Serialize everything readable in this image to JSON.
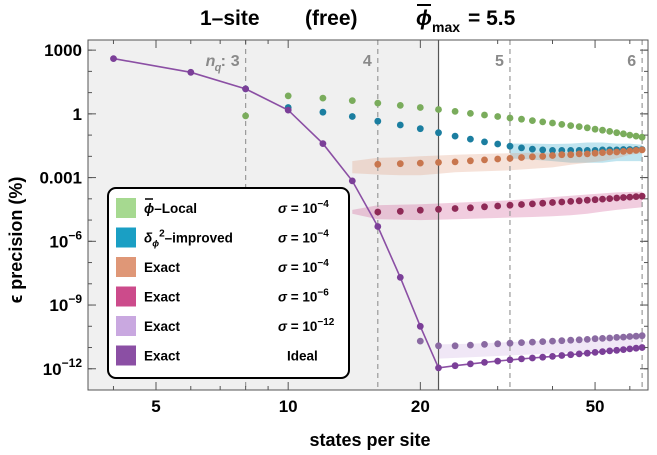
{
  "chart_data": {
    "type": "scatter",
    "title_parts": {
      "site": "1–site",
      "mode": "(free)",
      "phi": "ϕ",
      "sub": "max",
      "value": "= 5.5"
    },
    "xlabel": "states per site",
    "ylabel": "ϵ precision (%)",
    "x_scale": "log",
    "y_scale": "log",
    "xlim": [
      3.5,
      66
    ],
    "ylim": [
      1e-13,
      3000
    ],
    "x_ticks": [
      {
        "value": 5,
        "label": "5"
      },
      {
        "value": 10,
        "label": "10"
      },
      {
        "value": 20,
        "label": "20"
      },
      {
        "value": 50,
        "label": "50"
      }
    ],
    "y_ticks": [
      {
        "value": 1000,
        "label": "1000"
      },
      {
        "value": 1,
        "label": "1"
      },
      {
        "value": 0.001,
        "label": "0.001"
      },
      {
        "value": 1e-06,
        "label": "10",
        "exp": "−6"
      },
      {
        "value": 1e-09,
        "label": "10",
        "exp": "−9"
      },
      {
        "value": 1e-12,
        "label": "10",
        "exp": "−12"
      }
    ],
    "shaded_region": {
      "x_max": 22,
      "color": "#f0f0f0"
    },
    "solid_line_x": 22,
    "nq_prefix": "n",
    "nq_sub": "q",
    "nq_markers": [
      {
        "x": 8,
        "label": "3"
      },
      {
        "x": 16,
        "label": "4"
      },
      {
        "x": 32,
        "label": "5"
      },
      {
        "x": 64,
        "label": "6"
      }
    ],
    "series": [
      {
        "name": "ϕ‾–Local",
        "display": "ϕ–Local",
        "sigma": "σ = 10",
        "sigma_exp": "−4",
        "color": "#7aac5c",
        "legend_color": "#a6d990",
        "x": [
          8,
          10,
          12,
          14,
          16,
          18,
          20,
          22,
          24,
          26,
          28,
          30,
          32,
          34,
          36,
          38,
          40,
          42,
          44,
          46,
          48,
          50,
          52,
          54,
          56,
          58,
          60,
          62,
          64
        ],
        "y": [
          0.8,
          7,
          5.5,
          4.2,
          3.2,
          2.5,
          2.0,
          1.6,
          1.3,
          1.05,
          0.88,
          0.75,
          0.64,
          0.56,
          0.48,
          0.42,
          0.37,
          0.32,
          0.28,
          0.25,
          0.22,
          0.19,
          0.17,
          0.15,
          0.13,
          0.115,
          0.1,
          0.09,
          0.08
        ]
      },
      {
        "name": "δϕ²–improved",
        "display": "δ",
        "sigma": "σ = 10",
        "sigma_exp": "−4",
        "color": "#1b7ea0",
        "legend_color": "#1a9fc4",
        "x": [
          8,
          10,
          12,
          14,
          16,
          18,
          20,
          22,
          24,
          26,
          28,
          30,
          32,
          34,
          36,
          38,
          40,
          42,
          44,
          46,
          48,
          50,
          52,
          54,
          56,
          58,
          60,
          62,
          64
        ],
        "y": [
          15,
          2.0,
          1.2,
          0.75,
          0.45,
          0.3,
          0.2,
          0.13,
          0.09,
          0.065,
          0.048,
          0.038,
          0.03,
          0.025,
          0.022,
          0.02,
          0.019,
          0.019,
          0.019,
          0.019,
          0.019,
          0.019,
          0.02,
          0.02,
          0.02,
          0.021,
          0.021,
          0.021,
          0.021
        ],
        "band": {
          "x": [
            32,
            36,
            40,
            44,
            48,
            52,
            56,
            60,
            64
          ],
          "lo": [
            0.008,
            0.007,
            0.006,
            0.005,
            0.005,
            0.005,
            0.006,
            0.006,
            0.006
          ],
          "hi": [
            0.04,
            0.04,
            0.038,
            0.04,
            0.045,
            0.045,
            0.04,
            0.04,
            0.035
          ]
        }
      },
      {
        "name": "Exact σ=1e-4",
        "display": "Exact",
        "sigma": "σ = 10",
        "sigma_exp": "−4",
        "color": "#c8764e",
        "legend_color": "#df9777",
        "x": [
          16,
          18,
          20,
          22,
          24,
          26,
          28,
          30,
          32,
          34,
          36,
          38,
          40,
          42,
          44,
          46,
          48,
          50,
          52,
          54,
          56,
          58,
          60,
          62,
          64
        ],
        "y": [
          0.0042,
          0.0045,
          0.0048,
          0.0052,
          0.0055,
          0.0062,
          0.0068,
          0.0075,
          0.008,
          0.0088,
          0.0095,
          0.01,
          0.011,
          0.012,
          0.012,
          0.013,
          0.013,
          0.014,
          0.015,
          0.016,
          0.016,
          0.017,
          0.018,
          0.019,
          0.02
        ],
        "band": {
          "x": [
            14,
            16,
            18,
            20,
            22,
            24,
            28,
            32,
            36,
            40,
            44,
            48,
            52,
            56,
            60,
            64
          ],
          "lo": [
            0.0016,
            0.0014,
            0.0013,
            0.0013,
            0.0015,
            0.0018,
            0.002,
            0.0022,
            0.0026,
            0.003,
            0.004,
            0.005,
            0.006,
            0.008,
            0.012,
            0.014
          ],
          "hi": [
            0.006,
            0.0085,
            0.009,
            0.01,
            0.011,
            0.012,
            0.013,
            0.014,
            0.015,
            0.015,
            0.016,
            0.017,
            0.02,
            0.022,
            0.026,
            0.03
          ]
        }
      },
      {
        "name": "Exact σ=1e-6",
        "display": "Exact",
        "sigma": "σ = 10",
        "sigma_exp": "−6",
        "color": "#8e2a56",
        "legend_color": "#cc4b8b",
        "x": [
          16,
          18,
          20,
          22,
          24,
          26,
          28,
          30,
          32,
          34,
          36,
          38,
          40,
          42,
          44,
          46,
          48,
          50,
          52,
          54,
          56,
          58,
          60,
          62,
          64
        ],
        "y": [
          2.4e-05,
          2.6e-05,
          2.9e-05,
          3.2e-05,
          3.5e-05,
          3.8e-05,
          4.2e-05,
          4.6e-05,
          5e-05,
          5.4e-05,
          5.8e-05,
          6.2e-05,
          6.7e-05,
          7.1e-05,
          7.6e-05,
          8.1e-05,
          8.6e-05,
          9.1e-05,
          9.7e-05,
          0.000103,
          0.000109,
          0.000115,
          0.000121,
          0.000127,
          0.000133
        ],
        "band": {
          "x": [
            14,
            16,
            20,
            24,
            28,
            32,
            36,
            40,
            44,
            48,
            52,
            56,
            60,
            64
          ],
          "lo": [
            2e-05,
            1.1e-05,
            1e-05,
            1.1e-05,
            1.2e-05,
            1.3e-05,
            1.4e-05,
            1.5e-05,
            1.7e-05,
            2e-05,
            2.5e-05,
            3e-05,
            3.5e-05,
            4e-05
          ],
          "hi": [
            3e-05,
            5e-05,
            5.5e-05,
            6.5e-05,
            7.5e-05,
            8.5e-05,
            0.0001,
            0.00012,
            0.00014,
            0.00016,
            0.00018,
            0.0002,
            0.00021,
            0.00022
          ]
        }
      },
      {
        "name": "Exact σ=1e-12",
        "display": "Exact",
        "sigma": "σ = 10",
        "sigma_exp": "−12",
        "color": "#8a6aa2",
        "legend_color": "#c9a8e0",
        "x": [
          20,
          22,
          24,
          26,
          28,
          30,
          32,
          34,
          36,
          38,
          40,
          42,
          44,
          46,
          48,
          50,
          52,
          54,
          56,
          58,
          60,
          62,
          64
        ],
        "y": [
          2e-11,
          1.2e-11,
          1.2e-11,
          1.3e-11,
          1.4e-11,
          1.5e-11,
          1.6e-11,
          1.7e-11,
          1.8e-11,
          1.9e-11,
          2e-11,
          2.1e-11,
          2.2e-11,
          2.3e-11,
          2.4e-11,
          2.6e-11,
          2.7e-11,
          2.8e-11,
          3e-11,
          3.1e-11,
          3.3e-11,
          3.4e-11,
          3.6e-11
        ],
        "band": {
          "x": [
            22,
            26,
            30,
            34,
            38,
            42,
            46,
            50,
            54,
            58,
            62,
            64
          ],
          "lo": [
            3e-12,
            3.5e-12,
            4e-12,
            4.5e-12,
            5e-12,
            5.5e-12,
            6e-12,
            7e-12,
            8e-12,
            1e-11,
            1.2e-11,
            1.3e-11
          ],
          "hi": [
            1.4e-11,
            1.5e-11,
            1.7e-11,
            1.9e-11,
            2.1e-11,
            2.3e-11,
            2.6e-11,
            2.9e-11,
            3.2e-11,
            3.5e-11,
            3.8e-11,
            4e-11
          ]
        }
      },
      {
        "name": "Exact Ideal",
        "display": "Exact",
        "sigma": "Ideal",
        "color": "#7b3f98",
        "legend_color": "#8b4fa4",
        "line": true,
        "x": [
          4,
          6,
          8,
          10,
          12,
          14,
          16,
          18,
          20,
          22,
          24,
          26,
          28,
          30,
          32,
          34,
          36,
          38,
          40,
          42,
          44,
          46,
          48,
          50,
          52,
          54,
          56,
          58,
          60,
          62,
          64
        ],
        "y": [
          400,
          90,
          15,
          1.5,
          0.04,
          0.0007,
          5e-06,
          2e-08,
          1e-10,
          1.1e-12,
          1.4e-12,
          1.7e-12,
          2e-12,
          2.3e-12,
          2.6e-12,
          2.9e-12,
          3.2e-12,
          3.5e-12,
          3.8e-12,
          4.2e-12,
          4.6e-12,
          5e-12,
          5.4e-12,
          5.9e-12,
          6.4e-12,
          6.9e-12,
          7.4e-12,
          8e-12,
          8.6e-12,
          9.3e-12,
          1e-11
        ]
      }
    ],
    "legend_placement": "lower-left"
  }
}
